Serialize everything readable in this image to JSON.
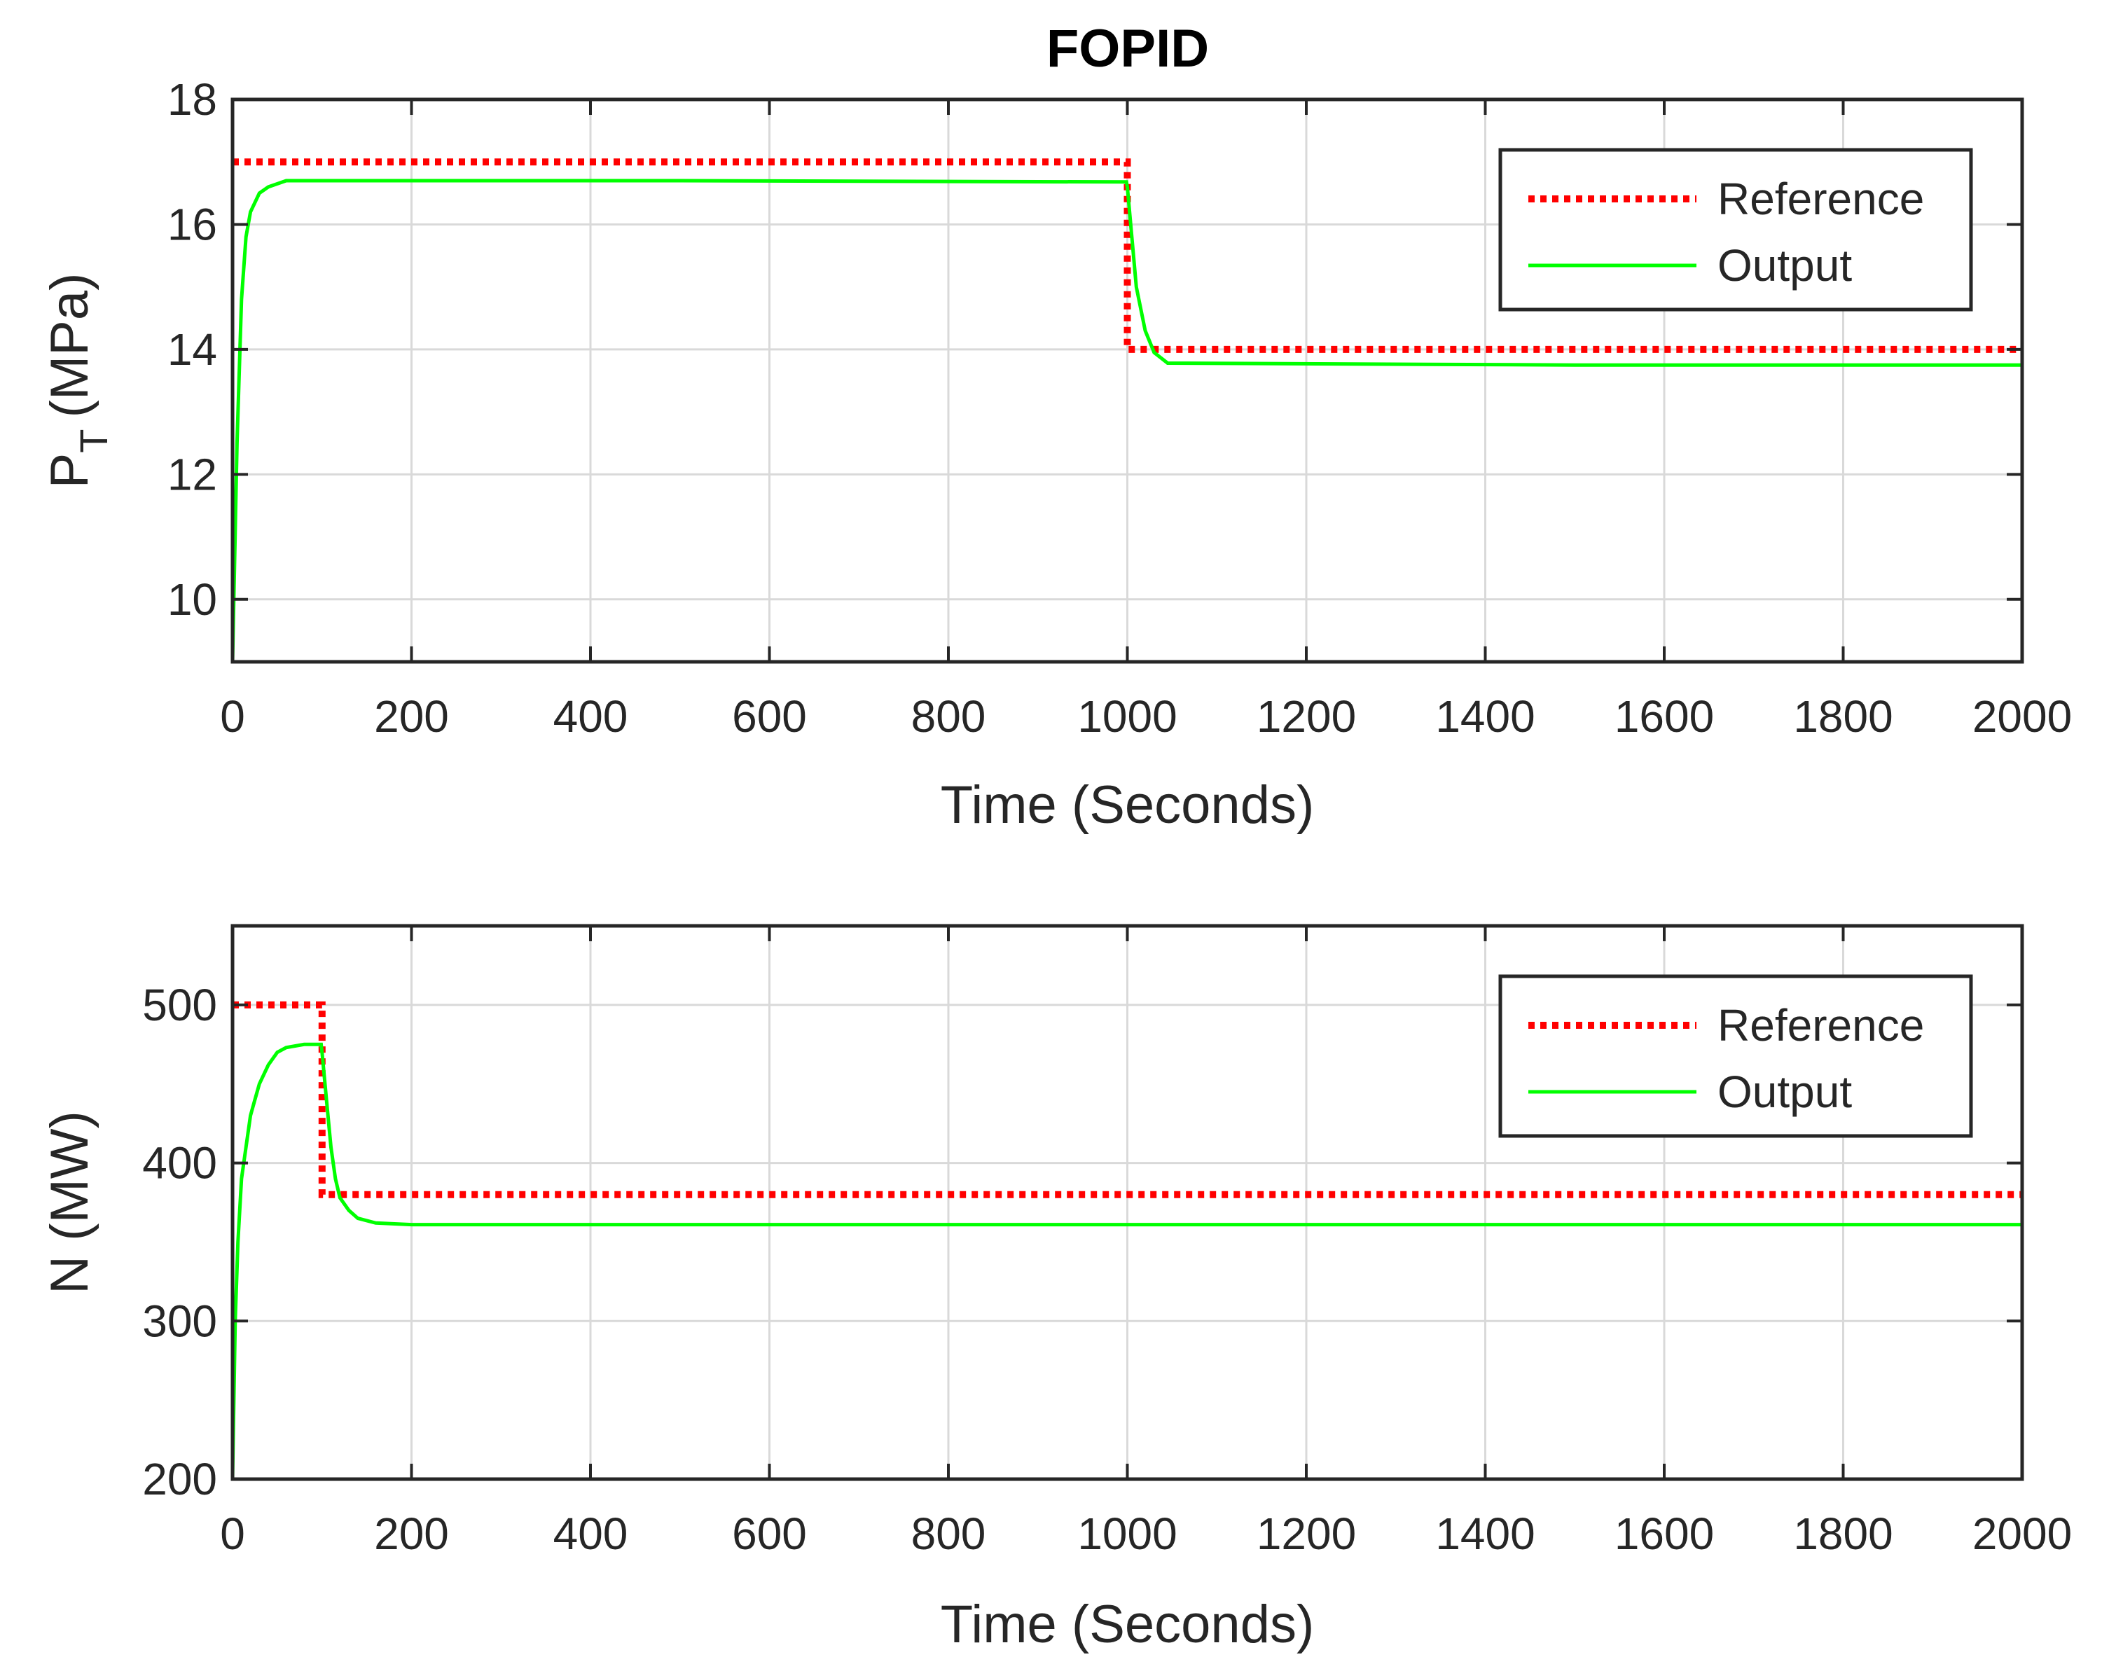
{
  "title": "FOPID",
  "colors": {
    "reference": "#ff0000",
    "output": "#00ff00",
    "axes": "#262626",
    "grid": "#d9d9d9"
  },
  "chart_data": [
    {
      "type": "line",
      "title": "FOPID",
      "xlabel": "Time (Seconds)",
      "ylabel_main": "P",
      "ylabel_sub": "T",
      "ylabel_unit": "(MPa)",
      "xlim": [
        0,
        2000
      ],
      "ylim": [
        9,
        18
      ],
      "xticks": [
        0,
        200,
        400,
        600,
        800,
        1000,
        1200,
        1400,
        1600,
        1800,
        2000
      ],
      "yticks": [
        10,
        12,
        14,
        16,
        18
      ],
      "grid": true,
      "legend_position": "top-right",
      "series": [
        {
          "name": "Reference",
          "style": "dotted",
          "x": [
            0,
            1000,
            1000,
            2000
          ],
          "y": [
            17,
            17,
            14,
            14
          ]
        },
        {
          "name": "Output",
          "style": "solid",
          "x": [
            0,
            5,
            10,
            15,
            20,
            30,
            40,
            60,
            100,
            500,
            999,
            1000,
            1005,
            1010,
            1020,
            1030,
            1045,
            1500,
            2000
          ],
          "y": [
            9,
            12.5,
            14.8,
            15.8,
            16.2,
            16.5,
            16.6,
            16.7,
            16.7,
            16.7,
            16.68,
            16.6,
            15.8,
            15.0,
            14.3,
            13.95,
            13.78,
            13.75,
            13.75
          ]
        }
      ]
    },
    {
      "type": "line",
      "xlabel": "Time (Seconds)",
      "ylabel": "N (MW)",
      "xlim": [
        0,
        2000
      ],
      "ylim": [
        200,
        550
      ],
      "xticks": [
        0,
        200,
        400,
        600,
        800,
        1000,
        1200,
        1400,
        1600,
        1800,
        2000
      ],
      "yticks": [
        200,
        300,
        400,
        500
      ],
      "grid": true,
      "legend_position": "top-right",
      "series": [
        {
          "name": "Reference",
          "style": "dotted",
          "x": [
            0,
            100,
            100,
            2000
          ],
          "y": [
            500,
            500,
            380,
            380
          ]
        },
        {
          "name": "Output",
          "style": "solid",
          "x": [
            0,
            3,
            6,
            10,
            15,
            20,
            25,
            30,
            40,
            50,
            60,
            80,
            99,
            100,
            105,
            110,
            115,
            120,
            130,
            140,
            160,
            200,
            1000,
            2000
          ],
          "y": [
            200,
            300,
            350,
            390,
            410,
            430,
            440,
            450,
            462,
            470,
            473,
            475,
            475,
            470,
            440,
            410,
            390,
            378,
            370,
            365,
            362,
            361,
            361,
            361
          ]
        }
      ]
    }
  ]
}
